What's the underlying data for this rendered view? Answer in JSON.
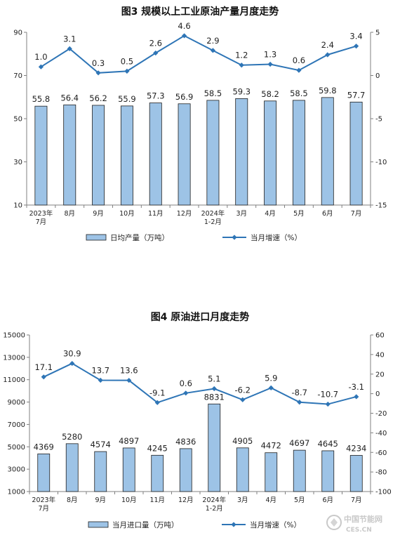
{
  "colors": {
    "bar_fill": "#9dc3e6",
    "bar_stroke": "#1f1f1f",
    "line": "#2e75b6",
    "axis": "#808080"
  },
  "chart_data": [
    {
      "type": "bar+line",
      "title": "图3  规模以上工业原油产量月度走势",
      "categories": [
        [
          "2023年",
          "7月"
        ],
        [
          "8月"
        ],
        [
          "9月"
        ],
        [
          "10月"
        ],
        [
          "11月"
        ],
        [
          "12月"
        ],
        [
          "2024年",
          "1-2月"
        ],
        [
          "3月"
        ],
        [
          "4月"
        ],
        [
          "5月"
        ],
        [
          "6月"
        ],
        [
          "7月"
        ]
      ],
      "bar_series": {
        "name": "日均产量（万吨）",
        "values": [
          55.8,
          56.4,
          56.2,
          55.9,
          57.3,
          56.9,
          58.5,
          59.3,
          58.2,
          58.5,
          59.8,
          57.7
        ]
      },
      "line_series": {
        "name": "当月增速（%）",
        "values": [
          1.0,
          3.1,
          0.3,
          0.5,
          2.6,
          4.6,
          2.9,
          1.2,
          1.3,
          0.6,
          2.4,
          3.4
        ]
      },
      "bar_labels": [
        "55.8",
        "56.4",
        "56.2",
        "55.9",
        "57.3",
        "56.9",
        "58.5",
        "59.3",
        "58.2",
        "58.5",
        "59.8",
        "57.7"
      ],
      "line_labels": [
        "1.0",
        "3.1",
        "0.3",
        "0.5",
        "2.6",
        "4.6",
        "2.9",
        "1.2",
        "1.3",
        "0.6",
        "2.4",
        "3.4"
      ],
      "ylim_left": [
        10,
        90
      ],
      "yticks_left": [
        "10",
        "30",
        "50",
        "70",
        "90"
      ],
      "ylim_right": [
        -15,
        5
      ],
      "yticks_right": [
        "-15",
        "-10",
        "-5",
        "0",
        "5"
      ],
      "legend_position": "bottom"
    },
    {
      "type": "bar+line",
      "title": "图4  原油进口月度走势",
      "categories": [
        [
          "2023年",
          "7月"
        ],
        [
          "8月"
        ],
        [
          "9月"
        ],
        [
          "10月"
        ],
        [
          "11月"
        ],
        [
          "12月"
        ],
        [
          "2024年",
          "1-2月"
        ],
        [
          "3月"
        ],
        [
          "4月"
        ],
        [
          "5月"
        ],
        [
          "6月"
        ],
        [
          "7月"
        ]
      ],
      "bar_series": {
        "name": "当月进口量（万吨）",
        "values": [
          4369,
          5280,
          4574,
          4897,
          4245,
          4836,
          8831,
          4905,
          4472,
          4697,
          4645,
          4234
        ]
      },
      "line_series": {
        "name": "当月增速（%）",
        "values": [
          17.1,
          30.9,
          13.7,
          13.6,
          -9.1,
          0.6,
          5.1,
          -6.2,
          5.9,
          -8.7,
          -10.7,
          -3.1
        ]
      },
      "bar_labels": [
        "4369",
        "5280",
        "4574",
        "4897",
        "4245",
        "4836",
        "8831",
        "4905",
        "4472",
        "4697",
        "4645",
        "4234"
      ],
      "line_labels": [
        "17.1",
        "30.9",
        "13.7",
        "13.6",
        "-9.1",
        "0.6",
        "5.1",
        "-6.2",
        "5.9",
        "-8.7",
        "-10.7",
        "-3.1"
      ],
      "ylim_left": [
        1000,
        15000
      ],
      "yticks_left": [
        "1000",
        "3000",
        "5000",
        "7000",
        "9000",
        "11000",
        "13000",
        "15000"
      ],
      "ylim_right": [
        -100,
        60
      ],
      "yticks_right": [
        "-100",
        "-80",
        "-60",
        "-40",
        "-20",
        "0",
        "20",
        "40",
        "60"
      ],
      "legend_position": "bottom"
    }
  ],
  "watermark": {
    "line1": "中国节能网",
    "line2": "CES.CN"
  }
}
